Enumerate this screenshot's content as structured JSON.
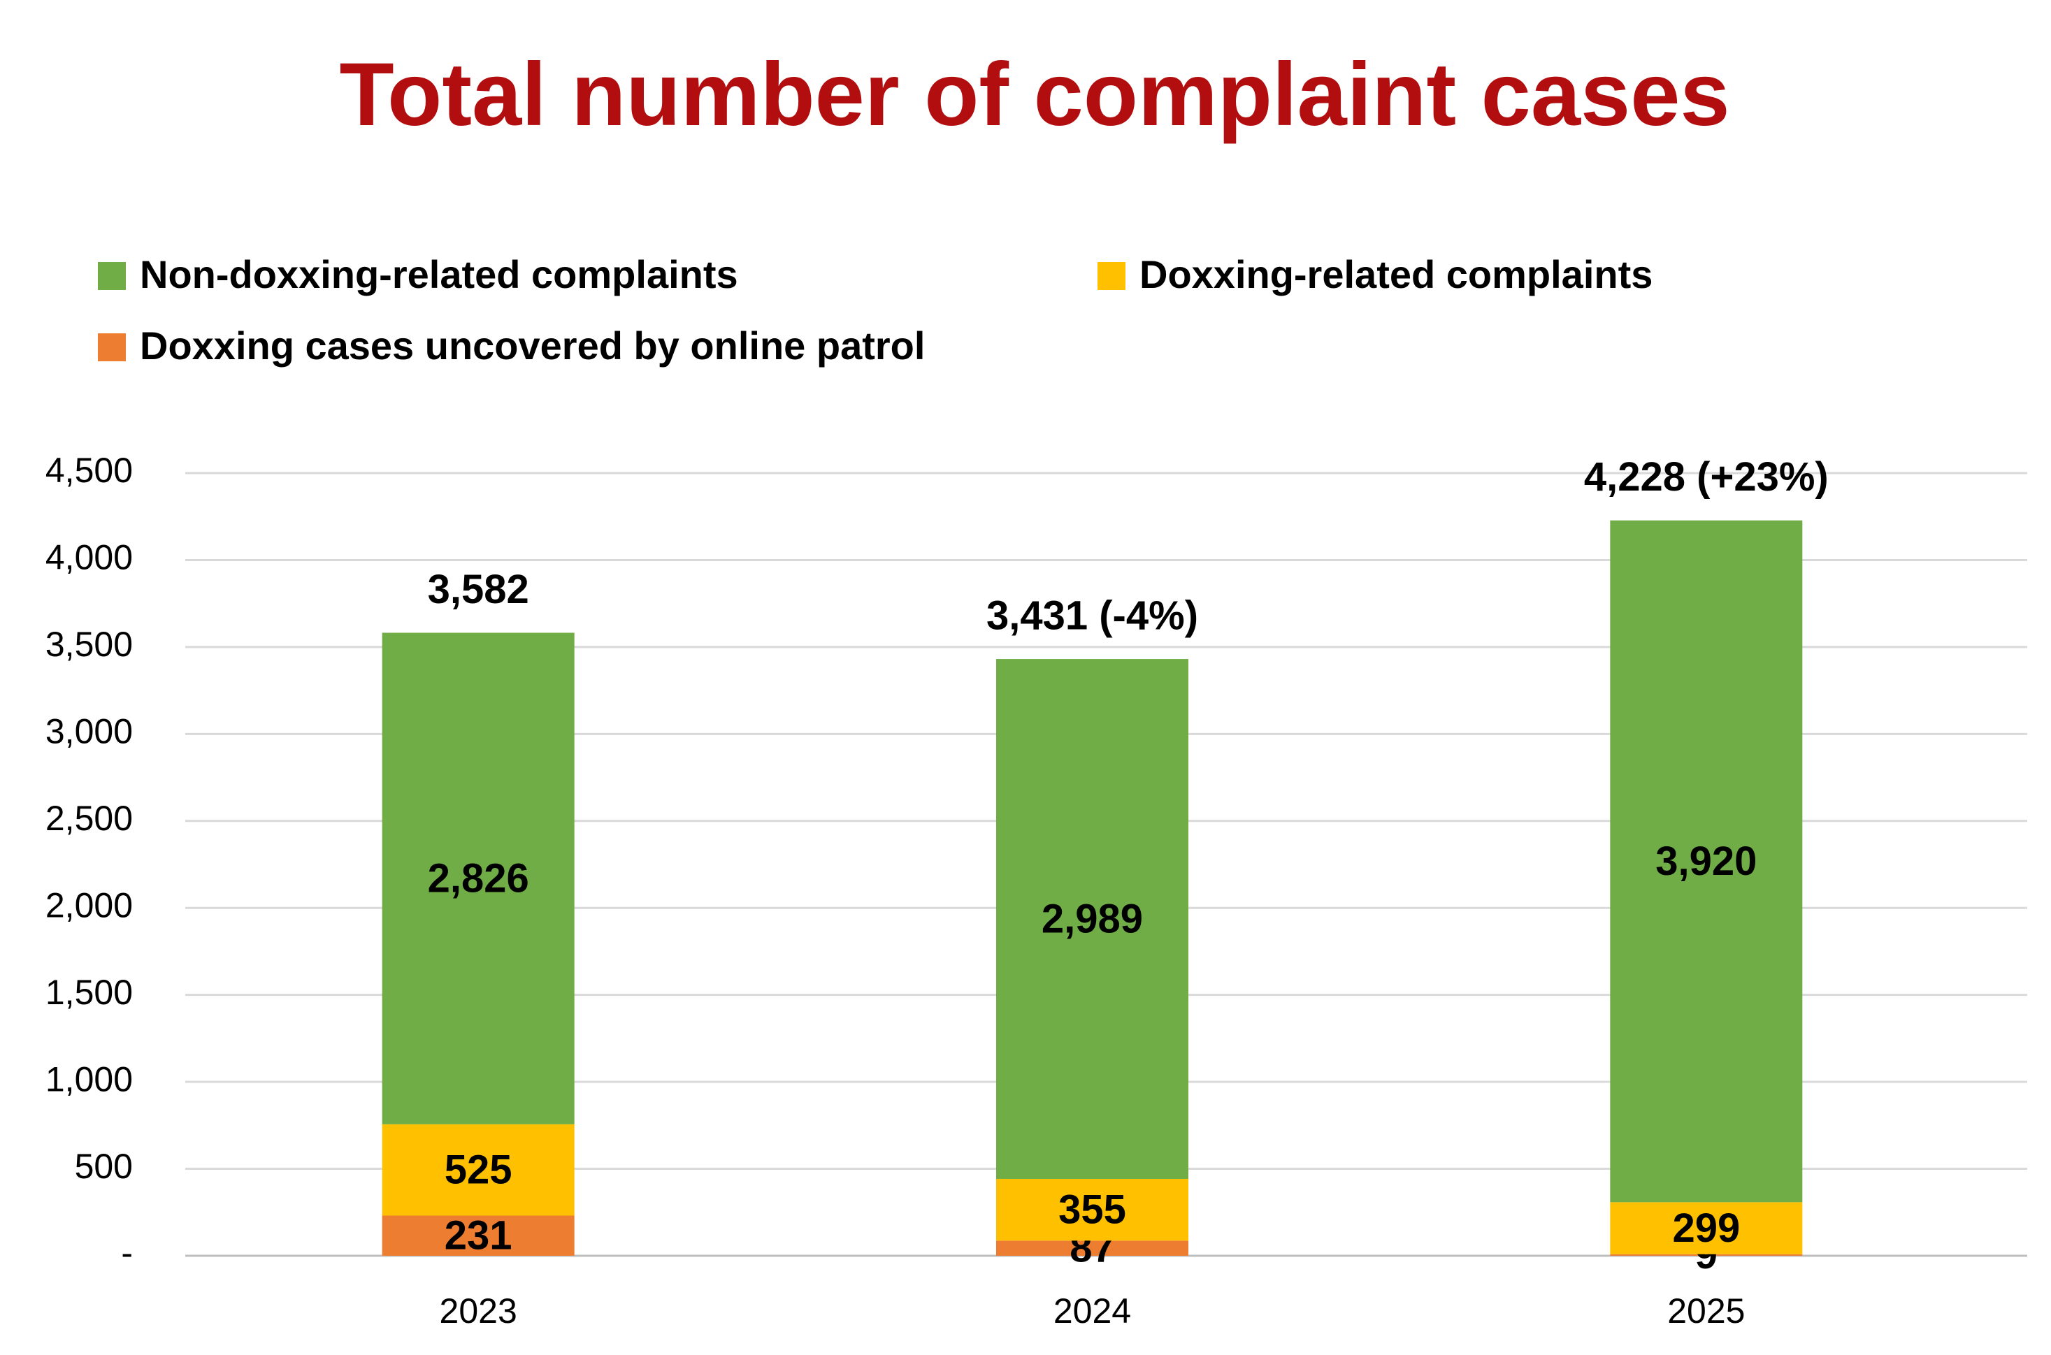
{
  "chart_data": {
    "type": "stacked_bar",
    "title": "Total number of complaint cases",
    "categories": [
      "2023",
      "2024",
      "2025"
    ],
    "series": [
      {
        "name": "Doxxing cases uncovered by online patrol",
        "color": "#ed7d31",
        "values": [
          231,
          87,
          9
        ],
        "value_labels": [
          "231",
          "87",
          "9"
        ]
      },
      {
        "name": "Doxxing-related complaints",
        "color": "#ffc000",
        "values": [
          525,
          355,
          299
        ],
        "value_labels": [
          "525",
          "355",
          "299"
        ]
      },
      {
        "name": "Non-doxxing-related complaints",
        "color": "#70ad47",
        "values": [
          2826,
          2989,
          3920
        ],
        "value_labels": [
          "2,826",
          "2,989",
          "3,920"
        ]
      }
    ],
    "totals": [
      3582,
      3431,
      4228
    ],
    "total_labels": [
      "3,582",
      "3,431 (-4%)",
      "4,228 (+23%)"
    ],
    "ylim": [
      0,
      4500
    ],
    "yticks": [
      {
        "value": 0,
        "label": "-"
      },
      500,
      {
        "value": 1000,
        "label": "1,000"
      },
      {
        "value": 1500,
        "label": "1,500"
      },
      {
        "value": 2000,
        "label": "2,000"
      },
      {
        "value": 2500,
        "label": "2,500"
      },
      {
        "value": 3000,
        "label": "3,000"
      },
      {
        "value": 3500,
        "label": "3,500"
      },
      {
        "value": 4000,
        "label": "4,000"
      },
      {
        "value": 4500,
        "label": "4,500"
      }
    ],
    "grid": true
  }
}
